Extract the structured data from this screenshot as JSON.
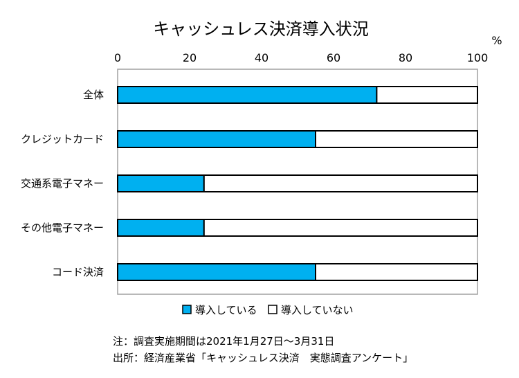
{
  "chart_data": {
    "type": "bar",
    "orientation": "horizontal",
    "stacked": true,
    "title": "キャッシュレス決済導入状況",
    "unit": "%",
    "categories": [
      "全体",
      "クレジットカード",
      "交通系電子マネー",
      "その他電子マネー",
      "コード決済"
    ],
    "series": [
      {
        "name": "導入している",
        "values": [
          72,
          55,
          24,
          24,
          55
        ],
        "color": "#00B0F0"
      },
      {
        "name": "導入していない",
        "values": [
          28,
          45,
          76,
          76,
          45
        ],
        "color": "#FFFFFF"
      }
    ],
    "xlim": [
      0,
      100
    ],
    "xticks": [
      0,
      20,
      40,
      60,
      80,
      100
    ],
    "xaxis_position": "top",
    "grid": false,
    "legend_position": "bottom"
  },
  "notes": {
    "survey_period": "注：調査実施期間は2021年1月27日～3月31日",
    "source": "出所：経済産業省「キャッシュレス決済　実態調査アンケート」"
  }
}
